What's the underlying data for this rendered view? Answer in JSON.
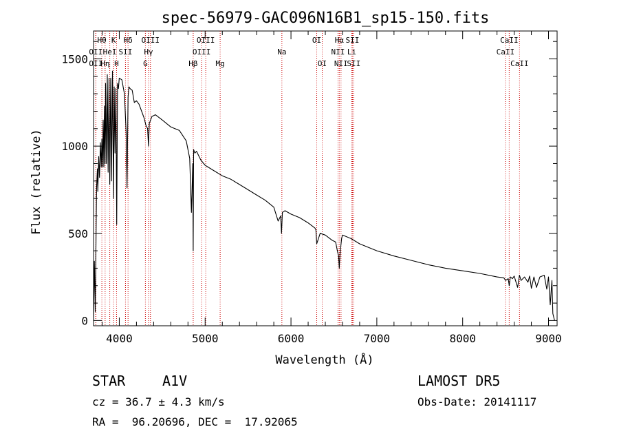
{
  "chart_data": {
    "type": "line",
    "title": "spec-56979-GAC096N16B1_sp15-150.fits",
    "xlabel": "Wavelength (Å)",
    "ylabel": "Flux (relative)",
    "xlim": [
      3700,
      9100
    ],
    "ylim": [
      -30,
      1660
    ],
    "xticks": [
      4000,
      5000,
      6000,
      7000,
      8000,
      9000
    ],
    "yticks": [
      0,
      500,
      1000,
      1500
    ],
    "grid": false,
    "line_color": "#000000",
    "marker_color": "#cc0000",
    "spectrum": {
      "x": [
        3700,
        3710,
        3720,
        3735,
        3745,
        3750,
        3760,
        3770,
        3780,
        3790,
        3797,
        3805,
        3812,
        3820,
        3826,
        3835,
        3840,
        3850,
        3860,
        3870,
        3880,
        3889,
        3900,
        3910,
        3920,
        3933,
        3940,
        3950,
        3960,
        3970,
        3980,
        3990,
        4000,
        4030,
        4060,
        4080,
        4090,
        4102,
        4112,
        4125,
        4150,
        4175,
        4200,
        4230,
        4260,
        4290,
        4310,
        4330,
        4340,
        4350,
        4365,
        4380,
        4420,
        4500,
        4600,
        4700,
        4780,
        4820,
        4840,
        4856,
        4861,
        4866,
        4880,
        4900,
        4950,
        5000,
        5100,
        5200,
        5300,
        5400,
        5500,
        5600,
        5700,
        5800,
        5850,
        5880,
        5890,
        5900,
        5930,
        6000,
        6100,
        6200,
        6280,
        6290,
        6300,
        6340,
        6400,
        6480,
        6520,
        6540,
        6555,
        6563,
        6571,
        6590,
        6600,
        6700,
        6800,
        7000,
        7200,
        7400,
        7600,
        7800,
        8000,
        8200,
        8400,
        8480,
        8500,
        8530,
        8542,
        8555,
        8580,
        8600,
        8640,
        8662,
        8680,
        8720,
        8760,
        8780,
        8800,
        8830,
        8860,
        8900,
        8950,
        8980,
        9000,
        9020,
        9040,
        9050,
        9070
      ],
      "y": [
        0,
        340,
        50,
        760,
        870,
        740,
        940,
        820,
        1020,
        880,
        1040,
        880,
        1150,
        880,
        1230,
        900,
        1360,
        900,
        1410,
        850,
        1390,
        780,
        1390,
        800,
        1430,
        700,
        1340,
        960,
        1330,
        550,
        1360,
        1330,
        1390,
        1380,
        1300,
        1080,
        760,
        1280,
        1340,
        1330,
        1320,
        1250,
        1260,
        1240,
        1200,
        1160,
        1120,
        1100,
        1000,
        1130,
        1150,
        1170,
        1180,
        1150,
        1110,
        1090,
        1030,
        930,
        620,
        900,
        400,
        980,
        960,
        970,
        920,
        890,
        860,
        830,
        810,
        780,
        750,
        720,
        690,
        650,
        570,
        600,
        500,
        620,
        630,
        610,
        590,
        560,
        530,
        520,
        440,
        500,
        490,
        460,
        450,
        400,
        370,
        300,
        380,
        470,
        490,
        470,
        440,
        400,
        370,
        345,
        320,
        300,
        285,
        270,
        250,
        245,
        230,
        240,
        200,
        250,
        240,
        255,
        190,
        260,
        230,
        250,
        220,
        255,
        185,
        250,
        190,
        250,
        260,
        180,
        250,
        90,
        230,
        40,
        0
      ]
    },
    "lines": [
      {
        "name": "Hθ",
        "wl": 3797,
        "row": 0
      },
      {
        "name": "OII",
        "wl": 3727,
        "row": 1
      },
      {
        "name": "Hη",
        "wl": 3835,
        "row": 2
      },
      {
        "name": "OII",
        "wl": 3727,
        "row": 2
      },
      {
        "name": "K",
        "wl": 3934,
        "row": 0
      },
      {
        "name": "HeI",
        "wl": 3889,
        "row": 1
      },
      {
        "name": "H",
        "wl": 3968,
        "row": 2
      },
      {
        "name": "Hδ",
        "wl": 4102,
        "row": 0
      },
      {
        "name": "SII",
        "wl": 4072,
        "row": 1
      },
      {
        "name": "OIII",
        "wl": 4363,
        "row": 0
      },
      {
        "name": "Hγ",
        "wl": 4341,
        "row": 1
      },
      {
        "name": "G",
        "wl": 4304,
        "row": 2
      },
      {
        "name": "Hβ",
        "wl": 4861,
        "row": 2
      },
      {
        "name": "OIII",
        "wl": 5007,
        "row": 0
      },
      {
        "name": "OIII",
        "wl": 4959,
        "row": 1
      },
      {
        "name": "Mg",
        "wl": 5175,
        "row": 2
      },
      {
        "name": "Na",
        "wl": 5894,
        "row": 1
      },
      {
        "name": "OI",
        "wl": 6300,
        "row": 0
      },
      {
        "name": "OI",
        "wl": 6364,
        "row": 2
      },
      {
        "name": "Hα",
        "wl": 6563,
        "row": 0
      },
      {
        "name": "SII",
        "wl": 6716,
        "row": 0
      },
      {
        "name": "NII",
        "wl": 6548,
        "row": 1
      },
      {
        "name": "Li",
        "wl": 6708,
        "row": 1
      },
      {
        "name": "NII",
        "wl": 6583,
        "row": 2
      },
      {
        "name": "SII",
        "wl": 6731,
        "row": 2
      },
      {
        "name": "CaII",
        "wl": 8542,
        "row": 0
      },
      {
        "name": "CaII",
        "wl": 8498,
        "row": 1
      },
      {
        "name": "CaII",
        "wl": 8662,
        "row": 2
      }
    ]
  },
  "footer": {
    "object_type": "STAR",
    "subclass": "A1V",
    "survey": "LAMOST DR5",
    "redshift": "cz = 36.7 ± 4.3 km/s",
    "obs_date": "Obs-Date: 20141117",
    "coords": "RA =  96.20696, DEC =  17.92065"
  }
}
